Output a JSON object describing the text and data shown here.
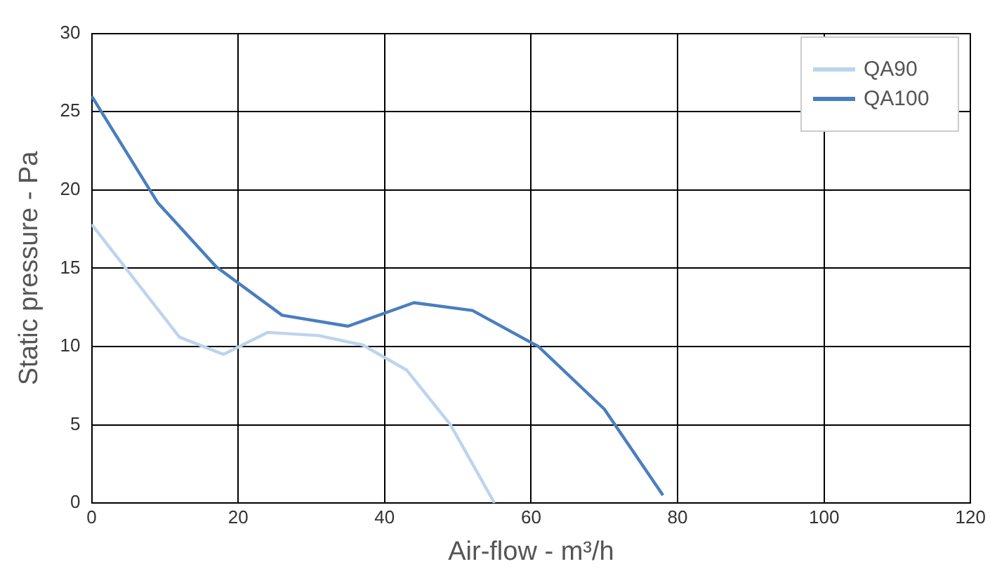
{
  "chart_data": {
    "type": "line",
    "xlabel": "Air-flow - m³/h",
    "ylabel": "Static pressure - Pa",
    "xlim": [
      0,
      120
    ],
    "xticks": [
      0,
      20,
      40,
      60,
      80,
      100,
      120
    ],
    "ylim": [
      0,
      30
    ],
    "yticks": [
      0,
      5,
      10,
      15,
      20,
      25,
      30
    ],
    "grid": true,
    "legend": "top right",
    "marker": "none",
    "series": [
      {
        "name": "QA90",
        "color": "#bcd4ee",
        "x": [
          0,
          12,
          18,
          24,
          31,
          37,
          43,
          49,
          55
        ],
        "values": [
          17.8,
          10.6,
          9.5,
          10.9,
          10.7,
          10.1,
          8.5,
          5,
          0
        ]
      },
      {
        "name": "QA100",
        "color": "#4a7ebf",
        "x": [
          0,
          9,
          17,
          26,
          35,
          44,
          52,
          61,
          70,
          78
        ],
        "values": [
          26,
          19.2,
          15.1,
          12,
          11.3,
          12.8,
          12.3,
          10,
          6,
          0.5
        ]
      }
    ]
  }
}
